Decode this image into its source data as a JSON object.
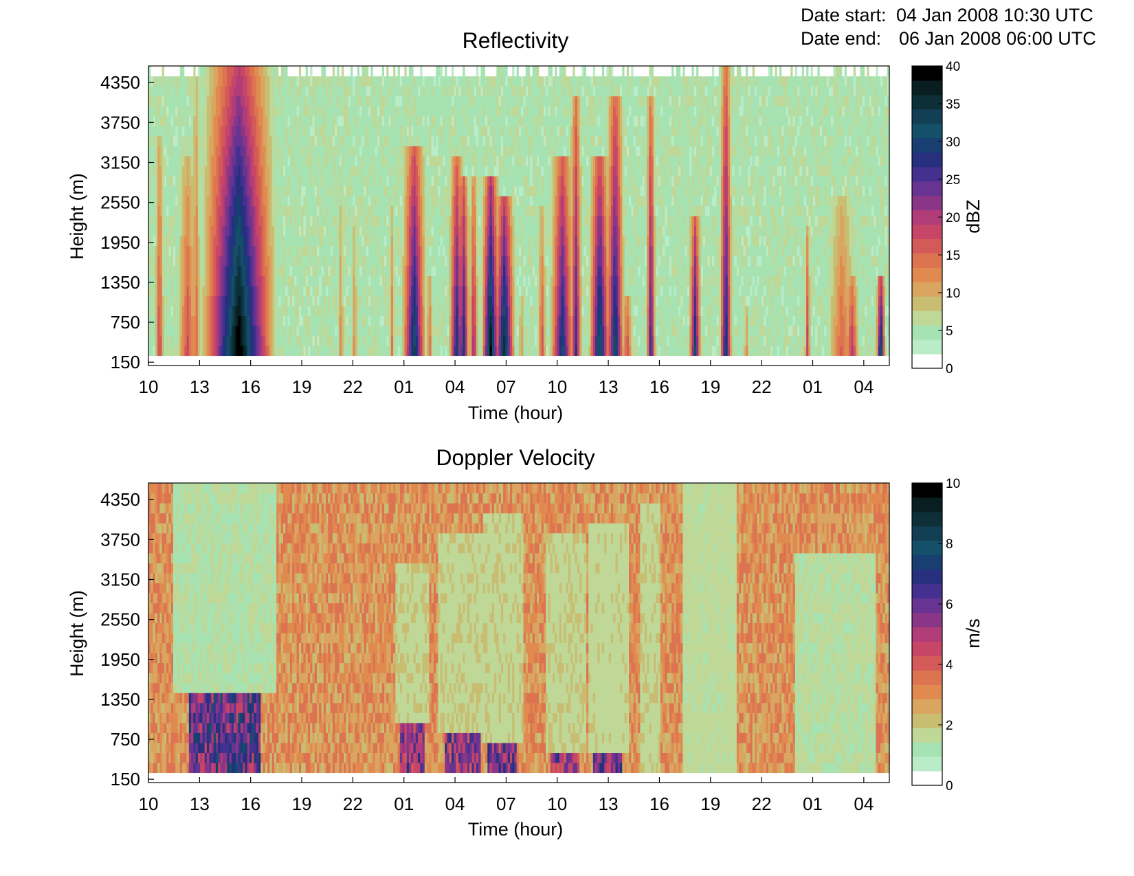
{
  "header": {
    "date_start_label": "Date start:",
    "date_start_value": "04 Jan 2008 10:30 UTC",
    "date_end_label": "Date end:",
    "date_end_value": "06 Jan 2008 06:00 UTC"
  },
  "colors": {
    "colormap": [
      "#ffffff",
      "#c8f3dc",
      "#b9ecc7",
      "#a6e2b2",
      "#bfd897",
      "#c9bd72",
      "#d9a560",
      "#e08a4f",
      "#dc7351",
      "#d35a58",
      "#c74667",
      "#b03c78",
      "#8a3686",
      "#673491",
      "#43308f",
      "#26307f",
      "#183e72",
      "#15506b",
      "#123f54",
      "#0c2f38",
      "#081e20",
      "#000000"
    ]
  },
  "chart_data": [
    {
      "type": "heatmap",
      "title": "Reflectivity",
      "xlabel": "Time (hour)",
      "ylabel": "Height (m)",
      "colorbar_label": "dBZ",
      "x_tick_labels": [
        "10",
        "13",
        "16",
        "19",
        "22",
        "01",
        "04",
        "07",
        "10",
        "13",
        "16",
        "19",
        "22",
        "01",
        "04"
      ],
      "x_tick_hours_since_start": [
        -0.5,
        2.5,
        5.5,
        8.5,
        11.5,
        14.5,
        17.5,
        20.5,
        23.5,
        26.5,
        29.5,
        32.5,
        35.5,
        38.5,
        41.5
      ],
      "xlim_hours_since_start": [
        -0.5,
        43.0
      ],
      "y_ticks": [
        150,
        750,
        1350,
        1950,
        2550,
        3150,
        3750,
        4350
      ],
      "ylim": [
        100,
        4600
      ],
      "clim": [
        0,
        40
      ],
      "colorbar_ticks": [
        0,
        5,
        10,
        15,
        20,
        25,
        30,
        35,
        40
      ],
      "background_level": 6,
      "features": [
        {
          "t": 0.15,
          "w": 0.3,
          "top": 3500,
          "peak": 18
        },
        {
          "t": 1.8,
          "w": 0.7,
          "top": 3200,
          "peak": 16
        },
        {
          "t": 2.3,
          "w": 0.3,
          "top": 4500,
          "peak": 14
        },
        {
          "t": 4.8,
          "w": 2.4,
          "top": 4600,
          "peak": 40
        },
        {
          "t": 6.2,
          "w": 0.4,
          "top": 4200,
          "peak": 18
        },
        {
          "t": 10.8,
          "w": 0.2,
          "top": 2600,
          "peak": 12
        },
        {
          "t": 11.6,
          "w": 0.2,
          "top": 2400,
          "peak": 12
        },
        {
          "t": 13.8,
          "w": 0.2,
          "top": 2500,
          "peak": 12
        },
        {
          "t": 15.1,
          "w": 0.8,
          "top": 3400,
          "peak": 32
        },
        {
          "t": 16.0,
          "w": 0.2,
          "top": 1500,
          "peak": 16
        },
        {
          "t": 17.6,
          "w": 0.5,
          "top": 3200,
          "peak": 30
        },
        {
          "t": 18.0,
          "w": 0.4,
          "top": 3000,
          "peak": 30
        },
        {
          "t": 18.6,
          "w": 0.3,
          "top": 2900,
          "peak": 22
        },
        {
          "t": 19.6,
          "w": 0.6,
          "top": 3000,
          "peak": 38
        },
        {
          "t": 20.4,
          "w": 0.7,
          "top": 2600,
          "peak": 36
        },
        {
          "t": 21.4,
          "w": 0.2,
          "top": 1100,
          "peak": 12
        },
        {
          "t": 22.6,
          "w": 0.3,
          "top": 2500,
          "peak": 16
        },
        {
          "t": 23.8,
          "w": 0.8,
          "top": 3300,
          "peak": 30
        },
        {
          "t": 24.6,
          "w": 0.4,
          "top": 4200,
          "peak": 26
        },
        {
          "t": 26.0,
          "w": 0.7,
          "top": 3200,
          "peak": 34
        },
        {
          "t": 26.9,
          "w": 0.6,
          "top": 4100,
          "peak": 32
        },
        {
          "t": 27.6,
          "w": 0.4,
          "top": 1100,
          "peak": 18
        },
        {
          "t": 29.0,
          "w": 0.3,
          "top": 4100,
          "peak": 28
        },
        {
          "t": 31.6,
          "w": 0.4,
          "top": 2400,
          "peak": 30
        },
        {
          "t": 33.4,
          "w": 0.4,
          "top": 4600,
          "peak": 30
        },
        {
          "t": 34.6,
          "w": 0.2,
          "top": 1000,
          "peak": 12
        },
        {
          "t": 38.2,
          "w": 0.2,
          "top": 2200,
          "peak": 18
        },
        {
          "t": 40.2,
          "w": 1.0,
          "top": 2700,
          "peak": 14
        },
        {
          "t": 40.8,
          "w": 0.5,
          "top": 1500,
          "peak": 20
        },
        {
          "t": 42.5,
          "w": 0.3,
          "top": 1400,
          "peak": 36
        }
      ]
    },
    {
      "type": "heatmap",
      "title": "Doppler Velocity",
      "xlabel": "Time (hour)",
      "ylabel": "Height (m)",
      "colorbar_label": "m/s",
      "x_tick_labels": [
        "10",
        "13",
        "16",
        "19",
        "22",
        "01",
        "04",
        "07",
        "10",
        "13",
        "16",
        "19",
        "22",
        "01",
        "04"
      ],
      "x_tick_hours_since_start": [
        -0.5,
        2.5,
        5.5,
        8.5,
        11.5,
        14.5,
        17.5,
        20.5,
        23.5,
        26.5,
        29.5,
        32.5,
        35.5,
        38.5,
        41.5
      ],
      "xlim_hours_since_start": [
        -0.5,
        43.0
      ],
      "y_ticks": [
        150,
        750,
        1350,
        1950,
        2550,
        3150,
        3750,
        4350
      ],
      "ylim": [
        100,
        4600
      ],
      "clim": [
        0,
        10
      ],
      "colorbar_ticks": [
        0,
        2,
        4,
        6,
        8,
        10
      ],
      "background_level": 3.2,
      "features": [
        {
          "t": 4.0,
          "w": 3.0,
          "top": 4600,
          "low": 1.4,
          "base": 1500,
          "peak": 8
        },
        {
          "t": 15.0,
          "w": 1.0,
          "top": 3400,
          "low": 1.8,
          "base": 950,
          "peak": 7
        },
        {
          "t": 18.0,
          "w": 1.5,
          "top": 3800,
          "low": 1.8,
          "base": 800,
          "peak": 7
        },
        {
          "t": 20.3,
          "w": 1.2,
          "top": 4200,
          "low": 1.8,
          "base": 700,
          "peak": 7.5
        },
        {
          "t": 24.0,
          "w": 1.2,
          "top": 3900,
          "low": 1.8,
          "base": 600,
          "peak": 7
        },
        {
          "t": 26.5,
          "w": 1.2,
          "top": 4000,
          "low": 1.7,
          "base": 500,
          "peak": 7.5
        },
        {
          "t": 29.0,
          "w": 0.6,
          "top": 4300,
          "low": 1.8,
          "base": 300,
          "peak": 7
        },
        {
          "t": 32.5,
          "w": 1.6,
          "top": 4600,
          "low": 1.6,
          "base": 300,
          "peak": 6
        },
        {
          "t": 39.8,
          "w": 2.4,
          "top": 3500,
          "low": 1.5,
          "base": 300,
          "peak": 6
        }
      ]
    }
  ]
}
